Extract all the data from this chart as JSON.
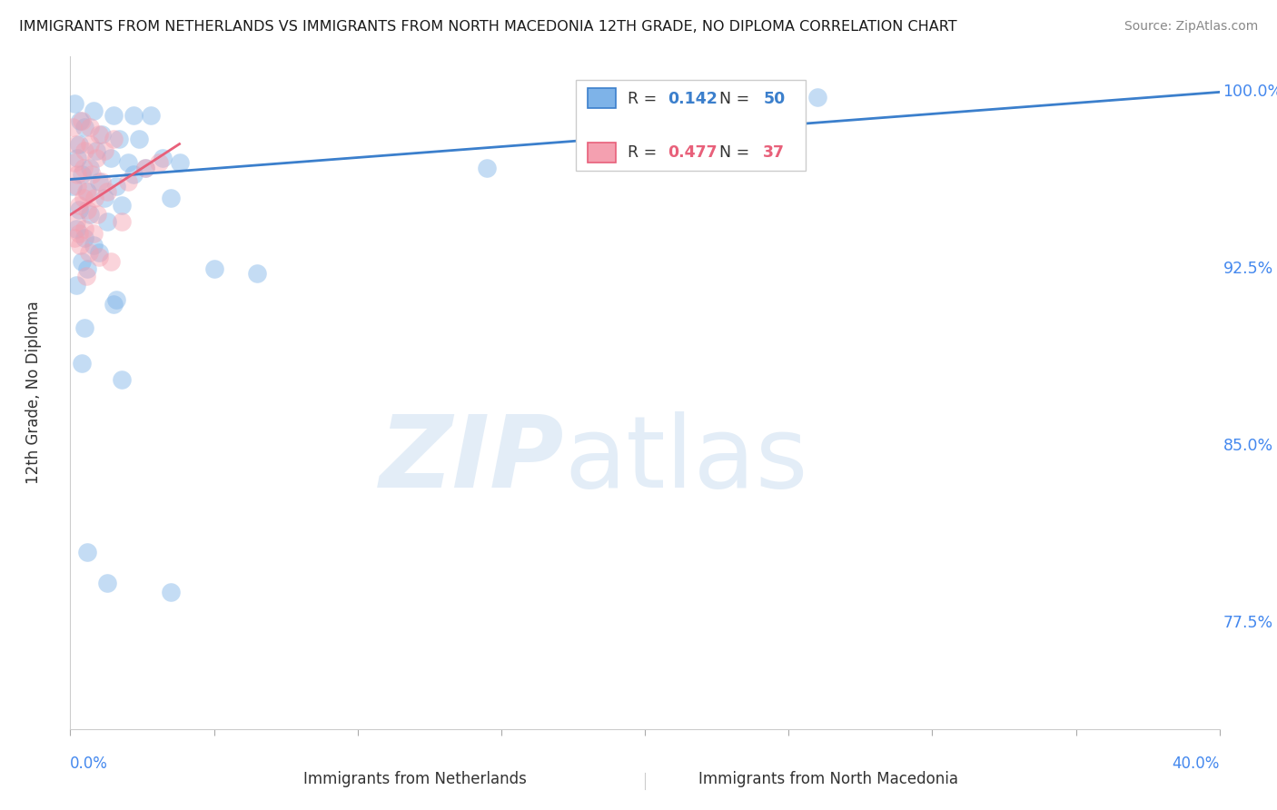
{
  "title": "IMMIGRANTS FROM NETHERLANDS VS IMMIGRANTS FROM NORTH MACEDONIA 12TH GRADE, NO DIPLOMA CORRELATION CHART",
  "source": "Source: ZipAtlas.com",
  "ylabel": "12th Grade, No Diploma",
  "watermark_zip": "ZIP",
  "watermark_atlas": "atlas",
  "legend_blue_r": "0.142",
  "legend_blue_n": "50",
  "legend_pink_r": "0.477",
  "legend_pink_n": "37",
  "legend_label_blue": "Immigrants from Netherlands",
  "legend_label_pink": "Immigrants from North Macedonia",
  "blue_color": "#7EB3E8",
  "pink_color": "#F4A0B0",
  "blue_line_color": "#3B7FCC",
  "pink_line_color": "#E8607A",
  "blue_scatter": [
    [
      0.15,
      99.5
    ],
    [
      0.8,
      99.2
    ],
    [
      1.5,
      99.0
    ],
    [
      2.2,
      99.0
    ],
    [
      2.8,
      99.0
    ],
    [
      0.5,
      98.5
    ],
    [
      1.1,
      98.2
    ],
    [
      1.7,
      98.0
    ],
    [
      2.4,
      98.0
    ],
    [
      0.3,
      97.8
    ],
    [
      0.9,
      97.5
    ],
    [
      1.4,
      97.2
    ],
    [
      2.0,
      97.0
    ],
    [
      2.6,
      96.8
    ],
    [
      3.2,
      97.2
    ],
    [
      0.4,
      96.5
    ],
    [
      1.0,
      96.2
    ],
    [
      1.6,
      96.0
    ],
    [
      2.2,
      96.5
    ],
    [
      0.6,
      95.8
    ],
    [
      1.2,
      95.5
    ],
    [
      1.8,
      95.2
    ],
    [
      3.5,
      95.5
    ],
    [
      0.3,
      95.0
    ],
    [
      0.7,
      94.8
    ],
    [
      1.3,
      94.5
    ],
    [
      0.5,
      93.8
    ],
    [
      0.8,
      93.5
    ],
    [
      1.0,
      93.2
    ],
    [
      0.4,
      92.8
    ],
    [
      0.6,
      92.5
    ],
    [
      0.2,
      91.8
    ],
    [
      1.5,
      91.0
    ],
    [
      1.6,
      91.2
    ],
    [
      0.5,
      90.0
    ],
    [
      0.4,
      88.5
    ],
    [
      1.8,
      87.8
    ],
    [
      0.6,
      80.5
    ],
    [
      1.3,
      79.2
    ],
    [
      3.5,
      78.8
    ],
    [
      26.0,
      99.8
    ],
    [
      14.5,
      96.8
    ],
    [
      6.5,
      92.3
    ],
    [
      5.0,
      92.5
    ],
    [
      3.8,
      97.0
    ],
    [
      0.2,
      94.2
    ],
    [
      0.1,
      96.0
    ],
    [
      0.25,
      97.2
    ],
    [
      0.7,
      96.8
    ],
    [
      0.35,
      98.8
    ]
  ],
  "pink_scatter": [
    [
      0.1,
      98.5
    ],
    [
      0.4,
      98.8
    ],
    [
      0.7,
      98.5
    ],
    [
      1.0,
      98.2
    ],
    [
      1.5,
      98.0
    ],
    [
      0.2,
      97.8
    ],
    [
      0.5,
      97.5
    ],
    [
      0.9,
      97.2
    ],
    [
      1.2,
      97.5
    ],
    [
      0.15,
      97.0
    ],
    [
      0.45,
      96.8
    ],
    [
      0.75,
      96.5
    ],
    [
      1.1,
      96.2
    ],
    [
      0.25,
      96.0
    ],
    [
      0.55,
      95.8
    ],
    [
      0.85,
      95.5
    ],
    [
      1.3,
      95.8
    ],
    [
      0.3,
      95.2
    ],
    [
      0.6,
      95.0
    ],
    [
      0.95,
      94.8
    ],
    [
      0.2,
      94.5
    ],
    [
      0.5,
      94.2
    ],
    [
      0.8,
      94.0
    ],
    [
      2.0,
      96.2
    ],
    [
      2.6,
      96.8
    ],
    [
      3.1,
      97.0
    ],
    [
      0.35,
      93.5
    ],
    [
      0.65,
      93.2
    ],
    [
      1.0,
      93.0
    ],
    [
      1.4,
      92.8
    ],
    [
      0.15,
      93.8
    ],
    [
      0.55,
      92.2
    ],
    [
      0.45,
      95.5
    ],
    [
      1.8,
      94.5
    ],
    [
      0.25,
      96.5
    ],
    [
      0.7,
      97.8
    ],
    [
      0.3,
      94.0
    ]
  ],
  "xlim": [
    0.0,
    40.0
  ],
  "ylim": [
    73.0,
    101.5
  ],
  "y_ticks": [
    77.5,
    85.0,
    92.5,
    100.0
  ],
  "x_ticks_minor": [
    0,
    5,
    10,
    15,
    20,
    25,
    30,
    35,
    40
  ],
  "background_color": "#ffffff",
  "grid_color": "#cccccc",
  "tick_label_color": "#4488ee",
  "ylabel_color": "#333333"
}
